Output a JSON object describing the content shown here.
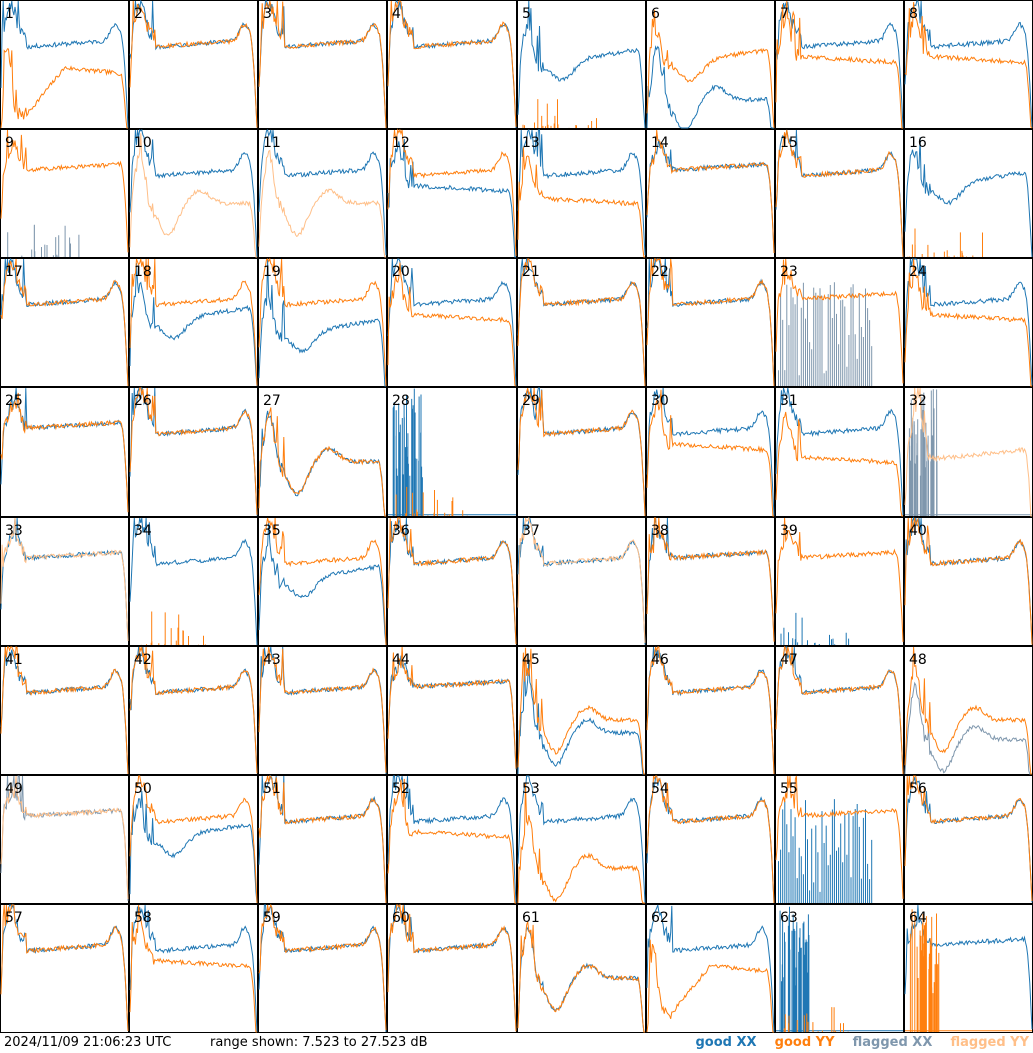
{
  "footer": {
    "timestamp": "2024/11/09 21:06:23 UTC",
    "range": "range shown: 7.523 to 27.523 dB"
  },
  "legend": [
    {
      "label": "good XX",
      "color": "#1f77b4"
    },
    {
      "label": "good YY",
      "color": "#ff7f0e"
    },
    {
      "label": "flagged XX",
      "color": "#7f97ad"
    },
    {
      "label": "flagged YY",
      "color": "#ffbf88"
    }
  ],
  "chart_data": {
    "type": "line",
    "grid_cols": 8,
    "grid_rows": 8,
    "ylim": [
      7.523,
      27.523
    ],
    "yunit": "dB",
    "panels": [
      {
        "label": "1",
        "xx": "good",
        "yy": "good",
        "xxShape": "A",
        "yyShape": "G",
        "xxOff": 0,
        "yyOff": -3
      },
      {
        "label": "2",
        "xx": "good",
        "yy": "good",
        "xxShape": "A",
        "yyShape": "A",
        "xxOff": 0,
        "yyOff": 0
      },
      {
        "label": "3",
        "xx": "good",
        "yy": "good",
        "xxShape": "A",
        "yyShape": "A",
        "xxOff": 0,
        "yyOff": 0
      },
      {
        "label": "4",
        "xx": "good",
        "yy": "good",
        "xxShape": "A",
        "yyShape": "A",
        "xxOff": 0,
        "yyOff": 0
      },
      {
        "label": "5",
        "xx": "good",
        "yy": "good",
        "xxShape": "B",
        "yyShape": "S",
        "xxOff": 0,
        "yyOff": 0
      },
      {
        "label": "6",
        "xx": "good",
        "yy": "good",
        "xxShape": "C",
        "yyShape": "B",
        "xxOff": -4,
        "yyOff": 0
      },
      {
        "label": "7",
        "xx": "good",
        "yy": "good",
        "xxShape": "A",
        "yyShape": "D",
        "xxOff": 0,
        "yyOff": 0
      },
      {
        "label": "8",
        "xx": "good",
        "yy": "good",
        "xxShape": "A",
        "yyShape": "D",
        "xxOff": 0,
        "yyOff": 0
      },
      {
        "label": "9",
        "xx": "flagged",
        "yy": "good",
        "xxShape": "S",
        "yyShape": "E",
        "xxOff": 0,
        "yyOff": 0
      },
      {
        "label": "10",
        "xx": "good",
        "yy": "flagged",
        "xxShape": "A",
        "yyShape": "C",
        "xxOff": 0,
        "yyOff": 0
      },
      {
        "label": "11",
        "xx": "good",
        "yy": "flagged",
        "xxShape": "A",
        "yyShape": "C",
        "xxOff": 0,
        "yyOff": 0
      },
      {
        "label": "12",
        "xx": "good",
        "yy": "good",
        "xxShape": "D",
        "yyShape": "A",
        "xxOff": 0,
        "yyOff": 0
      },
      {
        "label": "13",
        "xx": "good",
        "yy": "good",
        "xxShape": "A",
        "yyShape": "D",
        "xxOff": 0,
        "yyOff": -2
      },
      {
        "label": "14",
        "xx": "good",
        "yy": "good",
        "xxShape": "E",
        "yyShape": "E",
        "xxOff": 0,
        "yyOff": 0
      },
      {
        "label": "15",
        "xx": "good",
        "yy": "good",
        "xxShape": "A",
        "yyShape": "A",
        "xxOff": 0,
        "yyOff": 0
      },
      {
        "label": "16",
        "xx": "good",
        "yy": "good",
        "xxShape": "B",
        "yyShape": "S",
        "xxOff": 1,
        "yyOff": 0
      },
      {
        "label": "17",
        "xx": "good",
        "yy": "good",
        "xxShape": "A",
        "yyShape": "A",
        "xxOff": 0,
        "yyOff": 0
      },
      {
        "label": "18",
        "xx": "good",
        "yy": "good",
        "xxShape": "B",
        "yyShape": "A",
        "xxOff": 0,
        "yyOff": 0
      },
      {
        "label": "19",
        "xx": "good",
        "yy": "good",
        "xxShape": "B",
        "yyShape": "A",
        "xxOff": -2,
        "yyOff": 0
      },
      {
        "label": "20",
        "xx": "good",
        "yy": "good",
        "xxShape": "A",
        "yyShape": "D",
        "xxOff": 0,
        "yyOff": 0
      },
      {
        "label": "21",
        "xx": "good",
        "yy": "good",
        "xxShape": "A",
        "yyShape": "A",
        "xxOff": 0,
        "yyOff": 0
      },
      {
        "label": "22",
        "xx": "good",
        "yy": "good",
        "xxShape": "A",
        "yyShape": "A",
        "xxOff": 0,
        "yyOff": 0
      },
      {
        "label": "23",
        "xx": "flagged",
        "yy": "good",
        "xxShape": "F",
        "yyShape": "E",
        "xxOff": 0,
        "yyOff": 0
      },
      {
        "label": "24",
        "xx": "good",
        "yy": "good",
        "xxShape": "A",
        "yyShape": "D",
        "xxOff": 0,
        "yyOff": 0
      },
      {
        "label": "25",
        "xx": "good",
        "yy": "good",
        "xxShape": "E",
        "yyShape": "E",
        "xxOff": 0,
        "yyOff": 0
      },
      {
        "label": "26",
        "xx": "good",
        "yy": "good",
        "xxShape": "A",
        "yyShape": "A",
        "xxOff": 0,
        "yyOff": 0
      },
      {
        "label": "27",
        "xx": "good",
        "yy": "good",
        "xxShape": "C",
        "yyShape": "C",
        "xxOff": 0,
        "yyOff": 0
      },
      {
        "label": "28",
        "xx": "good",
        "yy": "good",
        "xxShape": "N",
        "yyShape": "S",
        "xxOff": 0,
        "yyOff": 0
      },
      {
        "label": "29",
        "xx": "good",
        "yy": "good",
        "xxShape": "A",
        "yyShape": "A",
        "xxOff": 0,
        "yyOff": 0
      },
      {
        "label": "30",
        "xx": "good",
        "yy": "good",
        "xxShape": "A",
        "yyShape": "D",
        "xxOff": 0,
        "yyOff": 0
      },
      {
        "label": "31",
        "xx": "good",
        "yy": "good",
        "xxShape": "A",
        "yyShape": "D",
        "xxOff": 0,
        "yyOff": -2
      },
      {
        "label": "32",
        "xx": "flagged",
        "yy": "flagged",
        "xxShape": "N",
        "yyShape": "H",
        "xxOff": 0,
        "yyOff": 0
      },
      {
        "label": "33",
        "xx": "good",
        "yy": "flagged",
        "xxShape": "E",
        "yyShape": "E",
        "xxOff": 0,
        "yyOff": 0
      },
      {
        "label": "34",
        "xx": "good",
        "yy": "good",
        "xxShape": "A",
        "yyShape": "S",
        "xxOff": 0,
        "yyOff": 0
      },
      {
        "label": "35",
        "xx": "good",
        "yy": "good",
        "xxShape": "B",
        "yyShape": "A",
        "xxOff": 0,
        "yyOff": 0
      },
      {
        "label": "36",
        "xx": "good",
        "yy": "good",
        "xxShape": "A",
        "yyShape": "A",
        "xxOff": 0,
        "yyOff": 0
      },
      {
        "label": "37",
        "xx": "good",
        "yy": "flagged",
        "xxShape": "A",
        "yyShape": "A",
        "xxOff": 0,
        "yyOff": 0
      },
      {
        "label": "38",
        "xx": "good",
        "yy": "good",
        "xxShape": "E",
        "yyShape": "E",
        "xxOff": 0,
        "yyOff": 0
      },
      {
        "label": "39",
        "xx": "good",
        "yy": "good",
        "xxShape": "S",
        "yyShape": "E",
        "xxOff": 0,
        "yyOff": 0
      },
      {
        "label": "40",
        "xx": "good",
        "yy": "good",
        "xxShape": "A",
        "yyShape": "A",
        "xxOff": 0,
        "yyOff": 0
      },
      {
        "label": "41",
        "xx": "good",
        "yy": "good",
        "xxShape": "A",
        "yyShape": "A",
        "xxOff": 0,
        "yyOff": 0
      },
      {
        "label": "42",
        "xx": "good",
        "yy": "good",
        "xxShape": "A",
        "yyShape": "A",
        "xxOff": 0,
        "yyOff": 0
      },
      {
        "label": "43",
        "xx": "good",
        "yy": "good",
        "xxShape": "A",
        "yyShape": "A",
        "xxOff": 0,
        "yyOff": 0
      },
      {
        "label": "44",
        "xx": "good",
        "yy": "good",
        "xxShape": "E",
        "yyShape": "E",
        "xxOff": 0,
        "yyOff": 0
      },
      {
        "label": "45",
        "xx": "good",
        "yy": "good",
        "xxShape": "C",
        "yyShape": "C",
        "xxOff": -2,
        "yyOff": 0
      },
      {
        "label": "46",
        "xx": "good",
        "yy": "good",
        "xxShape": "A",
        "yyShape": "A",
        "xxOff": 0,
        "yyOff": 0
      },
      {
        "label": "47",
        "xx": "good",
        "yy": "good",
        "xxShape": "A",
        "yyShape": "A",
        "xxOff": 0,
        "yyOff": 0
      },
      {
        "label": "48",
        "xx": "flagged",
        "yy": "good",
        "xxShape": "C",
        "yyShape": "C",
        "xxOff": -3,
        "yyOff": 0
      },
      {
        "label": "49",
        "xx": "flagged",
        "yy": "flagged",
        "xxShape": "E",
        "yyShape": "E",
        "xxOff": 0,
        "yyOff": 0
      },
      {
        "label": "50",
        "xx": "good",
        "yy": "good",
        "xxShape": "B",
        "yyShape": "A",
        "xxOff": 0,
        "yyOff": 0
      },
      {
        "label": "51",
        "xx": "good",
        "yy": "good",
        "xxShape": "A",
        "yyShape": "A",
        "xxOff": 0,
        "yyOff": 0
      },
      {
        "label": "52",
        "xx": "good",
        "yy": "good",
        "xxShape": "A",
        "yyShape": "D",
        "xxOff": 0,
        "yyOff": 0
      },
      {
        "label": "53",
        "xx": "good",
        "yy": "good",
        "xxShape": "A",
        "yyShape": "C",
        "xxOff": 0,
        "yyOff": -3
      },
      {
        "label": "54",
        "xx": "good",
        "yy": "good",
        "xxShape": "A",
        "yyShape": "A",
        "xxOff": 0,
        "yyOff": 0
      },
      {
        "label": "55",
        "xx": "good",
        "yy": "good",
        "xxShape": "F",
        "yyShape": "E",
        "xxOff": -4,
        "yyOff": 0
      },
      {
        "label": "56",
        "xx": "good",
        "yy": "good",
        "xxShape": "A",
        "yyShape": "A",
        "xxOff": 0,
        "yyOff": 0
      },
      {
        "label": "57",
        "xx": "good",
        "yy": "good",
        "xxShape": "A",
        "yyShape": "A",
        "xxOff": 0,
        "yyOff": 0
      },
      {
        "label": "58",
        "xx": "good",
        "yy": "good",
        "xxShape": "A",
        "yyShape": "D",
        "xxOff": 0,
        "yyOff": 0
      },
      {
        "label": "59",
        "xx": "good",
        "yy": "good",
        "xxShape": "A",
        "yyShape": "A",
        "xxOff": 0,
        "yyOff": 0
      },
      {
        "label": "60",
        "xx": "good",
        "yy": "good",
        "xxShape": "A",
        "yyShape": "A",
        "xxOff": 0,
        "yyOff": 0
      },
      {
        "label": "61",
        "xx": "good",
        "yy": "good",
        "xxShape": "C",
        "yyShape": "C",
        "xxOff": 0,
        "yyOff": 0
      },
      {
        "label": "62",
        "xx": "good",
        "yy": "good",
        "xxShape": "A",
        "yyShape": "G",
        "xxOff": 0,
        "yyOff": -2
      },
      {
        "label": "63",
        "xx": "good",
        "yy": "good",
        "xxShape": "N",
        "yyShape": "S",
        "xxOff": 0,
        "yyOff": 0
      },
      {
        "label": "64",
        "xx": "good",
        "yy": "good",
        "xxShape": "E",
        "yyShape": "N",
        "xxOff": 0,
        "yyOff": 0
      }
    ]
  }
}
